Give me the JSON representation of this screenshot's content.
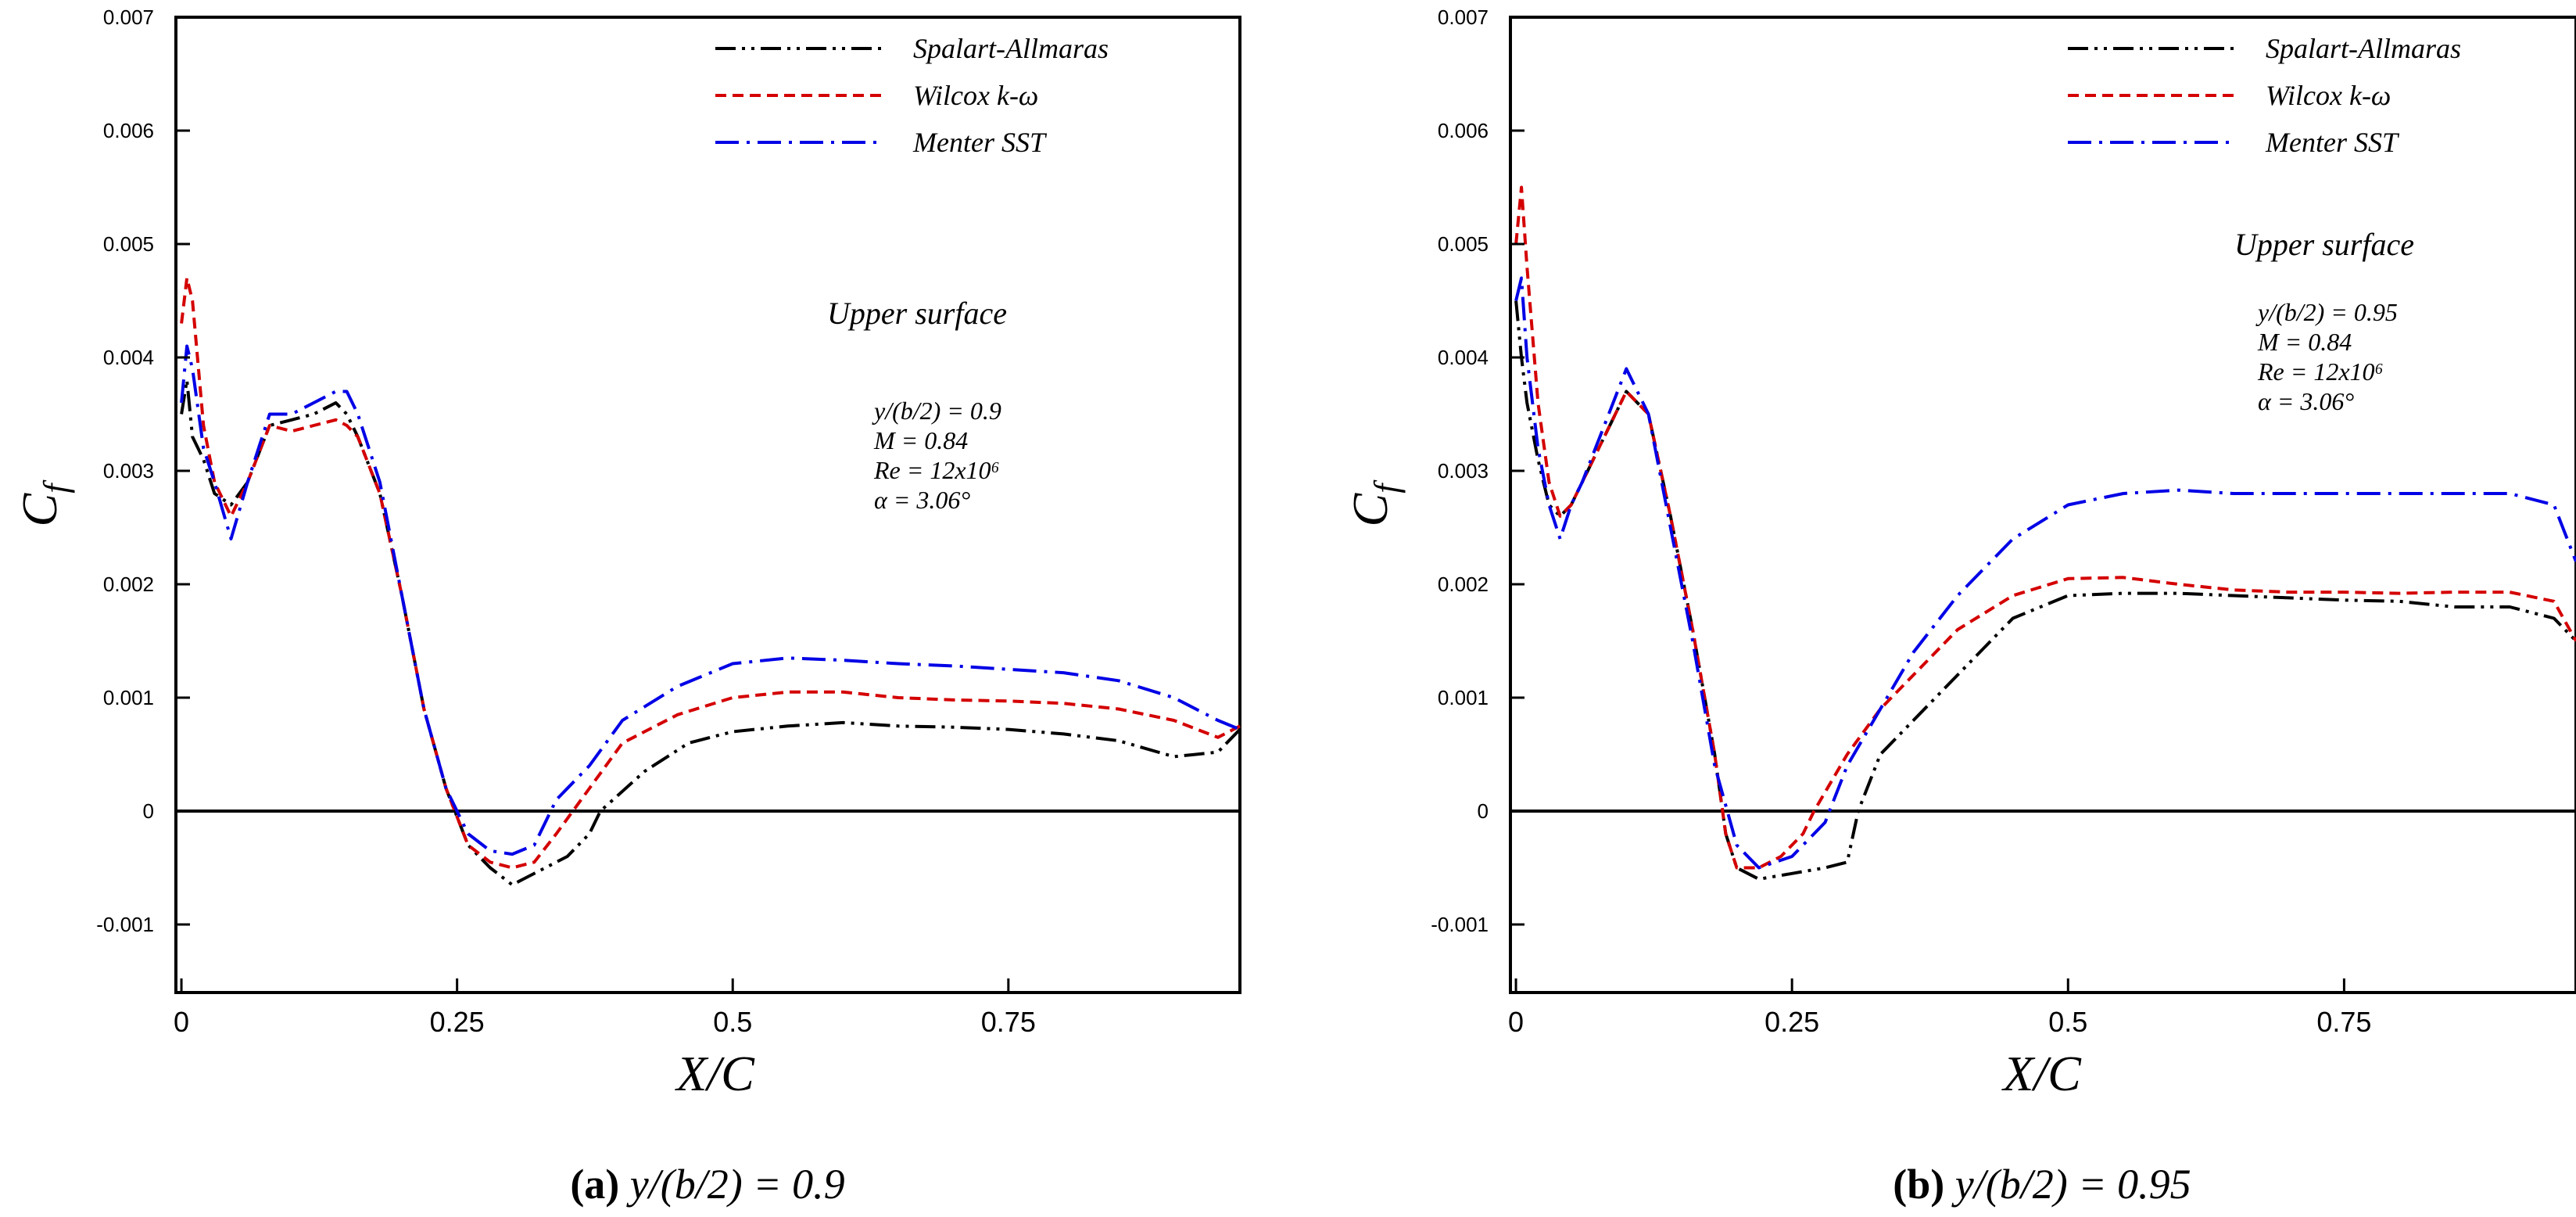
{
  "figure": {
    "captions": [
      {
        "label": "(a)",
        "text": "y/(b/2) = 0.9"
      },
      {
        "label": "(b)",
        "text": "y/(b/2) = 0.95"
      }
    ]
  },
  "chart_data": [
    {
      "type": "line",
      "xlabel": "X/C",
      "ylabel": "Cf",
      "xlim": [
        -0.005,
        0.96
      ],
      "ylim": [
        -0.0016,
        0.007
      ],
      "x_ticks": [
        "0",
        "0.25",
        "0.5",
        "0.75"
      ],
      "y_ticks": [
        "-0.001",
        "0",
        "0.001",
        "0.002",
        "0.003",
        "0.004",
        "0.005",
        "0.006",
        "0.007"
      ],
      "zero_line": true,
      "legend": [
        "Spalart-Allmaras",
        "Wilcox k-ω",
        "Menter SST"
      ],
      "annotation": {
        "title": "Upper surface",
        "lines": [
          "y/(b/2) = 0.9",
          "M = 0.84",
          "Re = 12x10⁶",
          "α = 3.06°"
        ]
      },
      "series": [
        {
          "name": "Spalart-Allmaras",
          "color": "#000000",
          "x": [
            0.0,
            0.005,
            0.01,
            0.02,
            0.03,
            0.045,
            0.06,
            0.08,
            0.1,
            0.12,
            0.14,
            0.15,
            0.16,
            0.18,
            0.2,
            0.22,
            0.24,
            0.26,
            0.28,
            0.3,
            0.31,
            0.33,
            0.35,
            0.37,
            0.38,
            0.42,
            0.46,
            0.5,
            0.55,
            0.6,
            0.65,
            0.7,
            0.75,
            0.8,
            0.85,
            0.9,
            0.94,
            0.96
          ],
          "y": [
            0.0035,
            0.0038,
            0.0033,
            0.0031,
            0.0028,
            0.0027,
            0.0029,
            0.0034,
            0.00345,
            0.0035,
            0.0036,
            0.0035,
            0.0033,
            0.0028,
            0.0019,
            0.0009,
            0.0002,
            -0.0003,
            -0.0005,
            -0.00065,
            -0.0006,
            -0.0005,
            -0.0004,
            -0.0002,
            0.0,
            0.00035,
            0.0006,
            0.0007,
            0.00075,
            0.00078,
            0.00075,
            0.00074,
            0.00072,
            0.00068,
            0.00062,
            0.00048,
            0.00052,
            0.00072
          ]
        },
        {
          "name": "Wilcox k-ω",
          "color": "#d40000",
          "x": [
            0.0,
            0.005,
            0.01,
            0.02,
            0.03,
            0.045,
            0.06,
            0.08,
            0.1,
            0.12,
            0.14,
            0.15,
            0.16,
            0.18,
            0.2,
            0.22,
            0.24,
            0.26,
            0.28,
            0.3,
            0.32,
            0.34,
            0.37,
            0.4,
            0.45,
            0.5,
            0.55,
            0.6,
            0.65,
            0.7,
            0.75,
            0.8,
            0.85,
            0.9,
            0.94,
            0.96
          ],
          "y": [
            0.0043,
            0.0047,
            0.0045,
            0.0034,
            0.0029,
            0.0026,
            0.0029,
            0.0034,
            0.00335,
            0.0034,
            0.00345,
            0.0034,
            0.0033,
            0.0028,
            0.0019,
            0.0009,
            0.0002,
            -0.0003,
            -0.00045,
            -0.0005,
            -0.00045,
            -0.0002,
            0.0002,
            0.0006,
            0.00085,
            0.001,
            0.00105,
            0.00105,
            0.001,
            0.00098,
            0.00097,
            0.00095,
            0.0009,
            0.0008,
            0.00065,
            0.00075
          ]
        },
        {
          "name": "Menter SST",
          "color": "#0000e6",
          "x": [
            0.0,
            0.005,
            0.01,
            0.02,
            0.03,
            0.045,
            0.06,
            0.08,
            0.1,
            0.12,
            0.14,
            0.15,
            0.16,
            0.18,
            0.2,
            0.22,
            0.24,
            0.26,
            0.28,
            0.3,
            0.32,
            0.34,
            0.37,
            0.4,
            0.45,
            0.5,
            0.55,
            0.6,
            0.65,
            0.7,
            0.75,
            0.8,
            0.85,
            0.9,
            0.94,
            0.96
          ],
          "y": [
            0.0036,
            0.0041,
            0.0039,
            0.0032,
            0.0029,
            0.0024,
            0.0029,
            0.0035,
            0.0035,
            0.0036,
            0.0037,
            0.0037,
            0.0035,
            0.0029,
            0.0019,
            0.0009,
            0.0002,
            -0.0002,
            -0.00035,
            -0.00038,
            -0.0003,
            0.0001,
            0.0004,
            0.0008,
            0.0011,
            0.0013,
            0.00135,
            0.00133,
            0.0013,
            0.00128,
            0.00125,
            0.00122,
            0.00115,
            0.001,
            0.0008,
            0.00072
          ]
        }
      ]
    },
    {
      "type": "line",
      "xlabel": "X/C",
      "ylabel": "Cf",
      "xlim": [
        -0.005,
        0.96
      ],
      "ylim": [
        -0.0016,
        0.007
      ],
      "x_ticks": [
        "0",
        "0.25",
        "0.5",
        "0.75"
      ],
      "y_ticks": [
        "-0.001",
        "0",
        "0.001",
        "0.002",
        "0.003",
        "0.004",
        "0.005",
        "0.006",
        "0.007"
      ],
      "zero_line": true,
      "legend": [
        "Spalart-Allmaras",
        "Wilcox k-ω",
        "Menter SST"
      ],
      "annotation": {
        "title": "Upper surface",
        "lines": [
          "y/(b/2) = 0.95",
          "M = 0.84",
          "Re = 12x10⁶",
          "α = 3.06°"
        ]
      },
      "series": [
        {
          "name": "Spalart-Allmaras",
          "color": "#000000",
          "x": [
            0.0,
            0.005,
            0.01,
            0.02,
            0.03,
            0.04,
            0.05,
            0.06,
            0.08,
            0.1,
            0.12,
            0.14,
            0.16,
            0.18,
            0.19,
            0.2,
            0.22,
            0.25,
            0.28,
            0.3,
            0.31,
            0.33,
            0.36,
            0.4,
            0.45,
            0.5,
            0.55,
            0.6,
            0.65,
            0.7,
            0.75,
            0.8,
            0.85,
            0.9,
            0.94,
            0.96
          ],
          "y": [
            0.0045,
            0.004,
            0.0036,
            0.0031,
            0.0027,
            0.0026,
            0.0027,
            0.0029,
            0.0033,
            0.0037,
            0.0035,
            0.0026,
            0.0016,
            0.0005,
            -0.0002,
            -0.0005,
            -0.0006,
            -0.00055,
            -0.0005,
            -0.00045,
            0.0,
            0.0005,
            0.0008,
            0.0012,
            0.0017,
            0.0019,
            0.00192,
            0.00192,
            0.0019,
            0.00188,
            0.00186,
            0.00185,
            0.0018,
            0.0018,
            0.0017,
            0.0015
          ]
        },
        {
          "name": "Wilcox k-ω",
          "color": "#d40000",
          "x": [
            0.0,
            0.005,
            0.01,
            0.02,
            0.03,
            0.04,
            0.05,
            0.06,
            0.08,
            0.1,
            0.12,
            0.14,
            0.16,
            0.18,
            0.19,
            0.2,
            0.22,
            0.24,
            0.26,
            0.27,
            0.3,
            0.33,
            0.36,
            0.4,
            0.45,
            0.5,
            0.55,
            0.6,
            0.65,
            0.7,
            0.75,
            0.8,
            0.85,
            0.9,
            0.94,
            0.96
          ],
          "y": [
            0.005,
            0.0055,
            0.0048,
            0.0036,
            0.0029,
            0.0026,
            0.0027,
            0.0029,
            0.0033,
            0.0037,
            0.0035,
            0.0026,
            0.0016,
            0.0005,
            -0.0002,
            -0.0005,
            -0.0005,
            -0.0004,
            -0.0002,
            0.0,
            0.0005,
            0.0009,
            0.0012,
            0.0016,
            0.0019,
            0.00205,
            0.00206,
            0.002,
            0.00195,
            0.00193,
            0.00193,
            0.00192,
            0.00193,
            0.00193,
            0.00185,
            0.0015
          ]
        },
        {
          "name": "Menter SST",
          "color": "#0000e6",
          "x": [
            0.0,
            0.005,
            0.01,
            0.02,
            0.03,
            0.04,
            0.05,
            0.06,
            0.08,
            0.1,
            0.12,
            0.14,
            0.16,
            0.18,
            0.2,
            0.22,
            0.25,
            0.28,
            0.3,
            0.33,
            0.36,
            0.4,
            0.45,
            0.5,
            0.55,
            0.6,
            0.65,
            0.7,
            0.75,
            0.8,
            0.85,
            0.9,
            0.94,
            0.96
          ],
          "y": [
            0.0045,
            0.0047,
            0.004,
            0.0032,
            0.0027,
            0.0024,
            0.0027,
            0.0029,
            0.0034,
            0.0039,
            0.0035,
            0.0025,
            0.0015,
            0.0004,
            -0.0003,
            -0.0005,
            -0.0004,
            -0.0001,
            0.0004,
            0.0009,
            0.0014,
            0.0019,
            0.0024,
            0.0027,
            0.0028,
            0.00283,
            0.0028,
            0.0028,
            0.0028,
            0.0028,
            0.0028,
            0.0028,
            0.0027,
            0.0022
          ]
        }
      ]
    }
  ]
}
